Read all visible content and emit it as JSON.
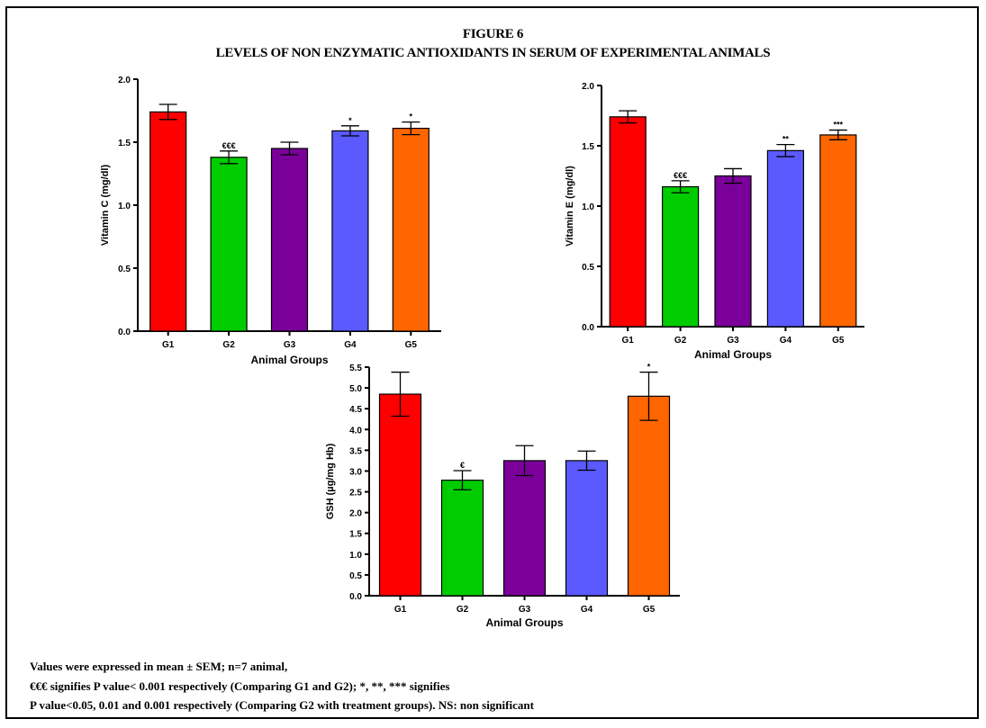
{
  "figure": {
    "title": "FIGURE 6",
    "subtitle": "LEVELS OF NON ENZYMATIC ANTIOXIDANTS IN SERUM OF EXPERIMENTAL ANIMALS"
  },
  "bar_colors": [
    "#ff0000",
    "#00cc00",
    "#7b0099",
    "#5a5aff",
    "#ff6600"
  ],
  "chart_data": [
    {
      "type": "bar",
      "categories": [
        "G1",
        "G2",
        "G3",
        "G4",
        "G5"
      ],
      "values": [
        1.74,
        1.38,
        1.45,
        1.59,
        1.61
      ],
      "errors": [
        0.06,
        0.05,
        0.05,
        0.04,
        0.05
      ],
      "annotations": [
        "",
        "€€€",
        "",
        "*",
        "*"
      ],
      "xlabel": "Animal Groups",
      "ylabel": "Vitamin C (mg/dl)",
      "ylim": [
        0,
        2.0
      ],
      "yticks": [
        0.0,
        0.5,
        1.0,
        1.5,
        2.0
      ],
      "ytick_labels": [
        "0.0",
        "0.5",
        "1.0",
        "1.5",
        "2.0"
      ]
    },
    {
      "type": "bar",
      "categories": [
        "G1",
        "G2",
        "G3",
        "G4",
        "G5"
      ],
      "values": [
        1.74,
        1.16,
        1.25,
        1.46,
        1.59
      ],
      "errors": [
        0.05,
        0.05,
        0.06,
        0.05,
        0.04
      ],
      "annotations": [
        "",
        "€€€",
        "",
        "**",
        "***"
      ],
      "xlabel": "Animal Groups",
      "ylabel": "Vitamin E (mg/dl)",
      "ylim": [
        0,
        2.0
      ],
      "yticks": [
        0.0,
        0.5,
        1.0,
        1.5,
        2.0
      ],
      "ytick_labels": [
        "0.0",
        "0.5",
        "1.0",
        "1.5",
        "2.0"
      ]
    },
    {
      "type": "bar",
      "categories": [
        "G1",
        "G2",
        "G3",
        "G4",
        "G5"
      ],
      "values": [
        4.85,
        2.78,
        3.25,
        3.25,
        4.8
      ],
      "errors": [
        0.53,
        0.23,
        0.36,
        0.23,
        0.58
      ],
      "annotations": [
        "",
        "€",
        "",
        "",
        "*"
      ],
      "xlabel": "Animal Groups",
      "ylabel": "GSH (µg/mg Hb)",
      "ylim": [
        0,
        5.5
      ],
      "yticks": [
        0.0,
        0.5,
        1.0,
        1.5,
        2.0,
        2.5,
        3.0,
        3.5,
        4.0,
        4.5,
        5.0,
        5.5
      ],
      "ytick_labels": [
        "0.0",
        "0.5",
        "1.0",
        "1.5",
        "2.0",
        "2.5",
        "3.0",
        "3.5",
        "4.0",
        "4.5",
        "5.0",
        "5.5"
      ]
    }
  ],
  "footnotes": [
    "Values were expressed in mean ± SEM; n=7 animal,",
    "€€€ signifies P value< 0.001 respectively (Comparing G1 and G2); *, **, *** signifies",
    "P value<0.05, 0.01 and 0.001 respectively (Comparing G2 with treatment groups). NS: non significant"
  ]
}
